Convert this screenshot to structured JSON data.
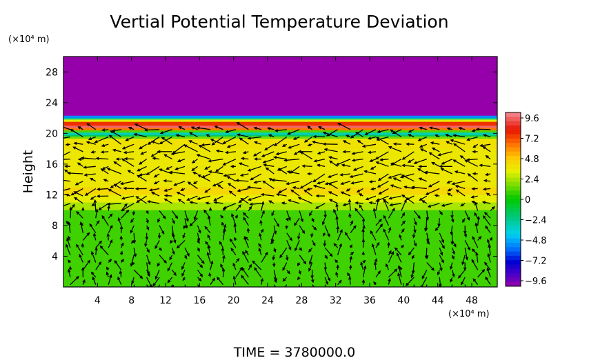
{
  "chart_data": {
    "type": "heatmap",
    "title": "Vertial Potential Temperature Deviation",
    "ylabel": "Height",
    "yunit": "(×10⁴ m)",
    "xunit": "(×10⁴ m)",
    "xlim": [
      0,
      51
    ],
    "ylim": [
      0,
      30
    ],
    "xticks": [
      4,
      8,
      12,
      16,
      20,
      24,
      28,
      32,
      36,
      40,
      44,
      48
    ],
    "yticks": [
      4,
      8,
      12,
      16,
      20,
      24,
      28
    ],
    "colorbar": {
      "ticks": [
        "9.6",
        "7.2",
        "4.8",
        "2.4",
        "0",
        "−2.4",
        "−4.8",
        "−7.2",
        "−9.6"
      ],
      "range": [
        -9.6,
        9.6
      ]
    },
    "bands": [
      {
        "from": 22.3,
        "to": 30,
        "value": -9.6
      },
      {
        "from": 22.0,
        "to": 22.3,
        "value": -5.0
      },
      {
        "from": 21.8,
        "to": 22.0,
        "value": -2.4
      },
      {
        "from": 21.5,
        "to": 21.8,
        "value": 3.0
      },
      {
        "from": 21.0,
        "to": 21.5,
        "value": 7.2
      },
      {
        "from": 20.7,
        "to": 21.0,
        "value": 9.0
      },
      {
        "from": 20.4,
        "to": 20.7,
        "value": 6.0
      },
      {
        "from": 20.1,
        "to": 20.4,
        "value": 1.0
      },
      {
        "from": 19.8,
        "to": 20.1,
        "value": -3.0
      },
      {
        "from": 19.6,
        "to": 19.8,
        "value": -1.5
      },
      {
        "from": 19.3,
        "to": 19.6,
        "value": 1.5
      },
      {
        "from": 18.0,
        "to": 19.3,
        "value": 3.6
      },
      {
        "from": 13.0,
        "to": 18.0,
        "value": 3.4
      },
      {
        "from": 12.0,
        "to": 13.0,
        "value": 4.0
      },
      {
        "from": 11.0,
        "to": 12.0,
        "value": 3.2
      },
      {
        "from": 10.0,
        "to": 11.0,
        "value": 2.2
      },
      {
        "from": 0,
        "to": 10.0,
        "value": 0.8
      }
    ],
    "vector_field": {
      "nx": 34,
      "ny": 22,
      "xmax": 51,
      "ymax": 20.5
    }
  },
  "footer": {
    "time_label": "TIME = 3780000.0"
  }
}
